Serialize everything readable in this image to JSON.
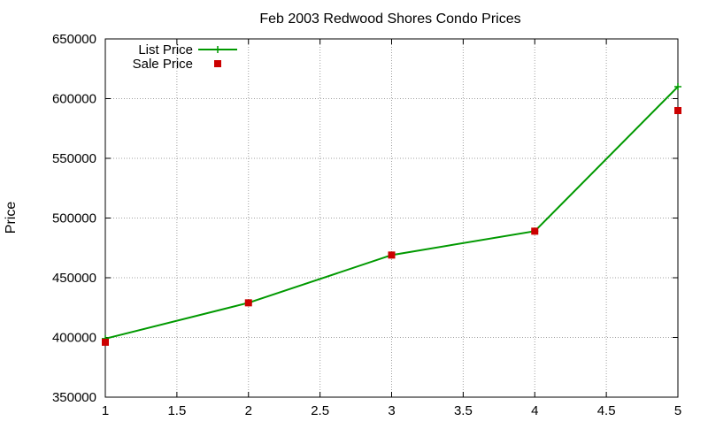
{
  "chart_data": {
    "type": "line",
    "title": "Feb 2003 Redwood Shores Condo Prices",
    "xlabel": "",
    "ylabel": "Price",
    "xlim": [
      1,
      5
    ],
    "ylim": [
      350000,
      650000
    ],
    "xticks": [
      "1",
      "1.5",
      "2",
      "2.5",
      "3",
      "3.5",
      "4",
      "4.5",
      "5"
    ],
    "yticks": [
      "350000",
      "400000",
      "450000",
      "500000",
      "550000",
      "600000",
      "650000"
    ],
    "grid": true,
    "legend_position": "top-left",
    "series": [
      {
        "name": "List Price",
        "style": "linespoints",
        "marker": "plus",
        "color": "#009900",
        "x": [
          1,
          2,
          3,
          4,
          5
        ],
        "y": [
          399000,
          429000,
          469000,
          489000,
          610000
        ]
      },
      {
        "name": "Sale Price",
        "style": "points",
        "marker": "square",
        "color": "#cc0000",
        "x": [
          1,
          2,
          3,
          4,
          5
        ],
        "y": [
          396000,
          429000,
          469000,
          489000,
          590000
        ]
      }
    ]
  }
}
